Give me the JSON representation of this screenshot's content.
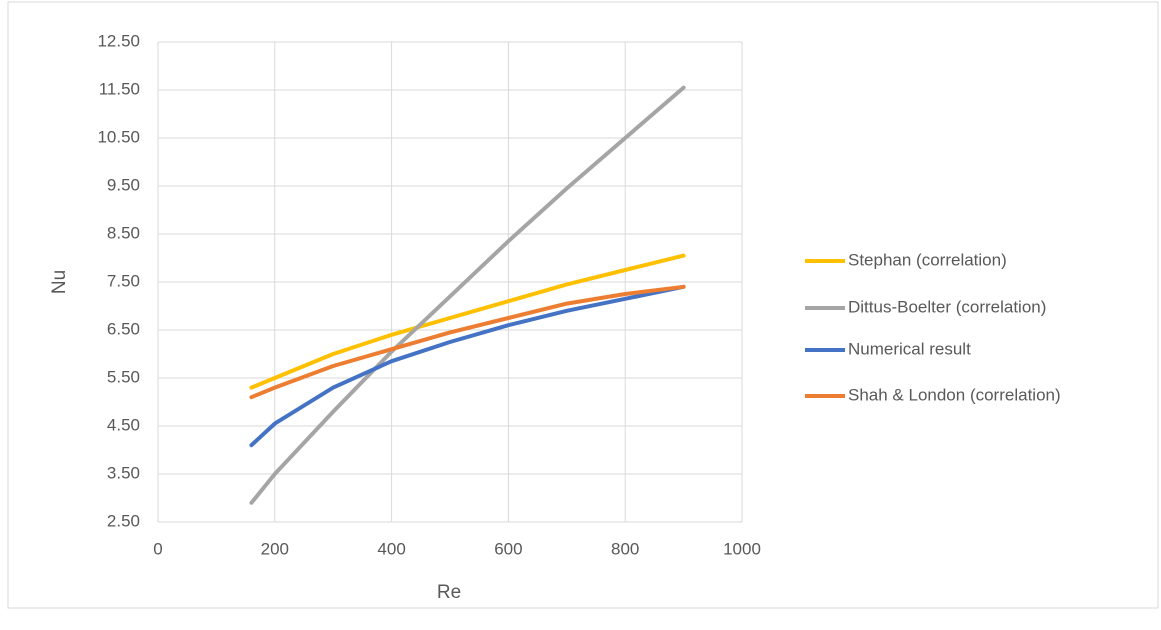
{
  "chart_data": {
    "type": "line",
    "x_label": "Re",
    "y_label": "Nu",
    "x": [
      160,
      200,
      300,
      400,
      500,
      600,
      700,
      800,
      900
    ],
    "series": [
      {
        "name": "Stephan (correlation)",
        "color": "#ffc000",
        "values": [
          5.3,
          5.5,
          6.0,
          6.4,
          6.75,
          7.1,
          7.45,
          7.75,
          8.05
        ]
      },
      {
        "name": "Dittus-Boelter (correlation)",
        "color": "#a5a5a5",
        "values": [
          2.9,
          3.5,
          4.8,
          6.05,
          7.2,
          8.35,
          9.45,
          10.5,
          11.55
        ]
      },
      {
        "name": "Numerical result",
        "color": "#4472c4",
        "values": [
          4.1,
          4.55,
          5.3,
          5.85,
          6.25,
          6.6,
          6.9,
          7.15,
          7.4
        ]
      },
      {
        "name": "Shah & London (correlation)",
        "color": "#ed7d31",
        "values": [
          5.1,
          5.3,
          5.75,
          6.1,
          6.45,
          6.75,
          7.05,
          7.25,
          7.4
        ]
      }
    ],
    "xlim": [
      0,
      1000
    ],
    "xticks": [
      0,
      200,
      400,
      600,
      800,
      1000
    ],
    "ylim": [
      2.5,
      12.5
    ],
    "yticks": [
      {
        "value": 2.5,
        "label": "2.50"
      },
      {
        "value": 3.5,
        "label": "3.50"
      },
      {
        "value": 4.5,
        "label": "4.50"
      },
      {
        "value": 5.5,
        "label": "5.50"
      },
      {
        "value": 6.5,
        "label": "6.50"
      },
      {
        "value": 7.5,
        "label": "7.50"
      },
      {
        "value": 8.5,
        "label": "8.50"
      },
      {
        "value": 9.5,
        "label": "9.50"
      },
      {
        "value": 10.5,
        "label": "10.50"
      },
      {
        "value": 11.5,
        "label": "11.50"
      },
      {
        "value": 12.5,
        "label": "12.50"
      }
    ],
    "grid": true,
    "legend": "right"
  }
}
